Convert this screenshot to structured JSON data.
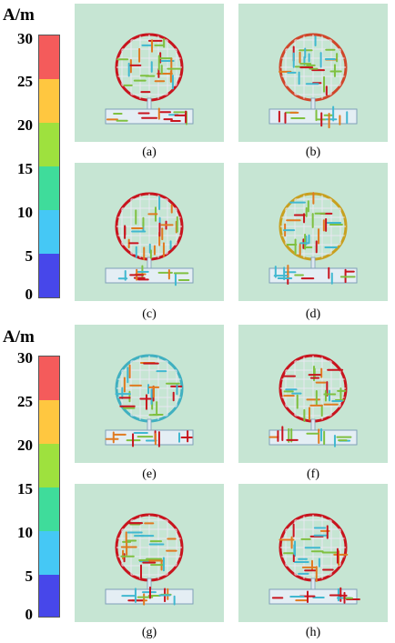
{
  "scale_top": {
    "unit": "A/m",
    "ticks": [
      "30",
      "25",
      "20",
      "15",
      "10",
      "5",
      "0"
    ],
    "colors": [
      "#f45b5b",
      "#ffc740",
      "#9ee13e",
      "#3fdc9b",
      "#45c8f5",
      "#4747ea"
    ]
  },
  "scale_bottom": {
    "unit": "A/m",
    "ticks": [
      "30",
      "25",
      "20",
      "15",
      "10",
      "5",
      "0"
    ],
    "colors": [
      "#f45b5b",
      "#ffc740",
      "#9ee13e",
      "#3fdc9b",
      "#45c8f5",
      "#4747ea"
    ]
  },
  "panels": [
    {
      "label": "(a)",
      "circle_color": "#c8141e"
    },
    {
      "label": "(b)",
      "circle_color": "#d0462a"
    },
    {
      "label": "(c)",
      "circle_color": "#c8141e"
    },
    {
      "label": "(d)",
      "circle_color": "#c8a020"
    },
    {
      "label": "(e)",
      "circle_color": "#40b0c0"
    },
    {
      "label": "(f)",
      "circle_color": "#c8141e"
    },
    {
      "label": "(g)",
      "circle_color": "#c8141e"
    },
    {
      "label": "(h)",
      "circle_color": "#c8141e"
    }
  ],
  "colors": {
    "panel_bg": "#c6e5d3",
    "red": "#c8141e",
    "orange": "#e07a20",
    "green": "#7fc040",
    "cyan": "#40b8d0"
  }
}
